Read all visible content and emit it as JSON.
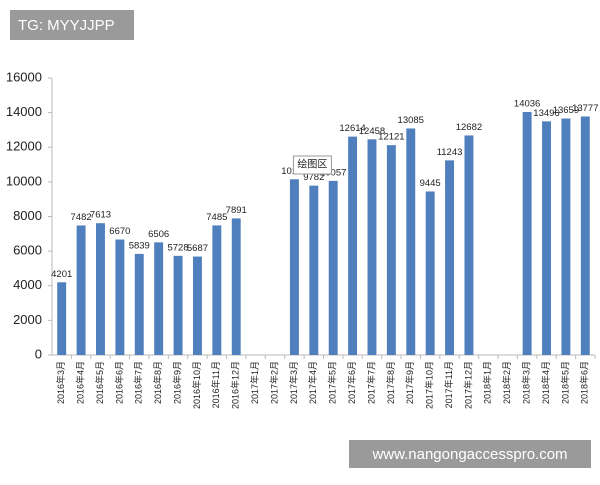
{
  "header": {
    "tag": "TG: MYYJJPP"
  },
  "footer": {
    "url": "www.nangongaccesspro.com"
  },
  "chart_data": {
    "type": "bar",
    "tooltip": "绘图区",
    "categories": [
      "2016年3月",
      "2016年4月",
      "2016年5月",
      "2016年6月",
      "2016年7月",
      "2016年8月",
      "2016年9月",
      "2016年10月",
      "2016年11月",
      "2016年12月",
      "2017年1月",
      "2017年2月",
      "2017年3月",
      "2017年4月",
      "2017年5月",
      "2017年6月",
      "2017年7月",
      "2017年8月",
      "2017年9月",
      "2017年10月",
      "2017年11月",
      "2017年12月",
      "2018年1月",
      "2018年2月",
      "2018年3月",
      "2018年4月",
      "2018年5月",
      "2018年6月"
    ],
    "values": [
      4201,
      7482,
      7613,
      6670,
      5839,
      6506,
      5728,
      5687,
      7485,
      7891,
      null,
      null,
      10150,
      9782,
      10057,
      12614,
      12458,
      12121,
      13085,
      9445,
      11243,
      12682,
      null,
      null,
      14036,
      13496,
      13659,
      13777
    ],
    "color": "#4f7fbd",
    "ylim": [
      0,
      16000
    ],
    "yticks": [
      0,
      2000,
      4000,
      6000,
      8000,
      10000,
      12000,
      14000,
      16000
    ],
    "grid": false
  }
}
